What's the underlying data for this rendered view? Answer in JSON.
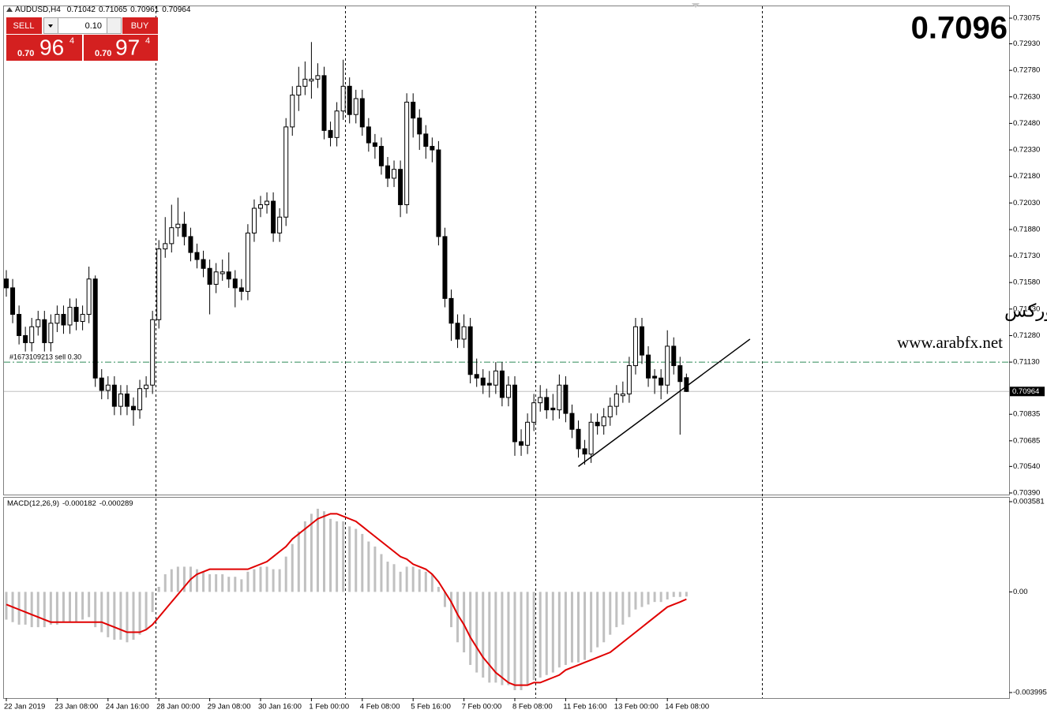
{
  "chart_data": [
    {
      "type": "candlestick",
      "title": "AUDUSD,H4",
      "categories": [
        "22 Jan 2019",
        null,
        null,
        null,
        null,
        null,
        null,
        null,
        "23 Jan 08:00",
        null,
        null,
        null,
        null,
        null,
        null,
        null,
        "24 Jan 16:00",
        null,
        null,
        null,
        null,
        null,
        null,
        null,
        "28 Jan 00:00",
        null,
        null,
        null,
        null,
        null,
        null,
        null,
        "29 Jan 08:00",
        null,
        null,
        null,
        null,
        null,
        null,
        null,
        "30 Jan 16:00",
        null,
        null,
        null,
        null,
        null,
        null,
        null,
        "1 Feb 00:00",
        null,
        null,
        null,
        null,
        null,
        null,
        null,
        "4 Feb 08:00",
        null,
        null,
        null,
        null,
        null,
        null,
        null,
        "5 Feb 16:00",
        null,
        null,
        null,
        null,
        null,
        null,
        null,
        "7 Feb 00:00",
        null,
        null,
        null,
        null,
        null,
        null,
        null,
        "8 Feb 08:00",
        null,
        null,
        null,
        null,
        null,
        null,
        null,
        "11 Feb 16:00",
        null,
        null,
        null,
        null,
        null,
        null,
        null,
        "13 Feb 00:00",
        null,
        null,
        null,
        null,
        null,
        null,
        null,
        "14 Feb 08:00",
        null,
        null,
        null
      ],
      "open": [
        0.716,
        0.7155,
        0.714,
        0.7128,
        0.7124,
        0.7133,
        0.7137,
        0.7124,
        0.7135,
        0.714,
        0.7134,
        0.7144,
        0.7136,
        0.714,
        0.716,
        0.7104,
        0.7097,
        0.71,
        0.7088,
        0.7095,
        0.7088,
        0.7086,
        0.7098,
        0.71,
        0.7137,
        0.7177,
        0.718,
        0.7189,
        0.7191,
        0.7184,
        0.7175,
        0.7171,
        0.7166,
        0.7157,
        0.7163,
        0.7164,
        0.716,
        0.7155,
        0.7153,
        0.7186,
        0.72,
        0.7202,
        0.7204,
        0.7186,
        0.7195,
        0.7246,
        0.7264,
        0.7269,
        0.7272,
        0.7273,
        0.7275,
        0.7244,
        0.724,
        0.7255,
        0.7269,
        0.7253,
        0.7262,
        0.7246,
        0.7237,
        0.7235,
        0.7224,
        0.7217,
        0.7222,
        0.7202,
        0.726,
        0.7251,
        0.7242,
        0.7235,
        0.7233,
        0.7184,
        0.7149,
        0.7135,
        0.7126,
        0.7133,
        0.7106,
        0.7104,
        0.7101,
        0.71,
        0.7108,
        0.7093,
        0.71,
        0.7068,
        0.7066,
        0.7079,
        0.709,
        0.7093,
        0.7087,
        0.7086,
        0.71,
        0.7084,
        0.7075,
        0.7064,
        0.7061,
        0.7079,
        0.7077,
        0.7082,
        0.7088,
        0.7094,
        0.7095,
        0.7111,
        0.7133,
        0.7117,
        0.7105,
        0.7104,
        0.71,
        0.7122,
        0.7111,
        0.71042
      ],
      "high": [
        0.7165,
        0.716,
        0.7145,
        0.7133,
        0.7138,
        0.7142,
        0.7142,
        0.714,
        0.7145,
        0.7145,
        0.7149,
        0.7149,
        0.7145,
        0.7167,
        0.7162,
        0.7109,
        0.7105,
        0.7105,
        0.71,
        0.71,
        0.7093,
        0.7103,
        0.7105,
        0.7142,
        0.7182,
        0.7195,
        0.7202,
        0.7206,
        0.7198,
        0.7189,
        0.718,
        0.7176,
        0.7171,
        0.7169,
        0.7171,
        0.7175,
        0.7165,
        0.716,
        0.7191,
        0.7205,
        0.7207,
        0.7209,
        0.7209,
        0.72,
        0.7251,
        0.7269,
        0.728,
        0.7283,
        0.7294,
        0.7282,
        0.728,
        0.7249,
        0.726,
        0.7284,
        0.7274,
        0.7267,
        0.7267,
        0.7251,
        0.7242,
        0.724,
        0.7229,
        0.7227,
        0.7227,
        0.7265,
        0.7265,
        0.7256,
        0.7247,
        0.724,
        0.7238,
        0.7189,
        0.7154,
        0.714,
        0.714,
        0.7138,
        0.7115,
        0.7109,
        0.7108,
        0.7113,
        0.7113,
        0.7105,
        0.7105,
        0.7075,
        0.7084,
        0.7095,
        0.71,
        0.7098,
        0.7095,
        0.7106,
        0.7105,
        0.7089,
        0.708,
        0.7069,
        0.7084,
        0.7084,
        0.7087,
        0.7093,
        0.71,
        0.7102,
        0.7116,
        0.7138,
        0.7138,
        0.7122,
        0.7109,
        0.7109,
        0.7131,
        0.7127,
        0.7116,
        0.71065
      ],
      "low": [
        0.715,
        0.7135,
        0.7123,
        0.7119,
        0.7119,
        0.7128,
        0.7119,
        0.7119,
        0.713,
        0.7129,
        0.7129,
        0.7131,
        0.7131,
        0.7135,
        0.7099,
        0.7092,
        0.7092,
        0.7083,
        0.7083,
        0.7083,
        0.7077,
        0.7081,
        0.7093,
        0.7095,
        0.7132,
        0.7172,
        0.7175,
        0.7184,
        0.7179,
        0.717,
        0.7166,
        0.7161,
        0.714,
        0.7152,
        0.7159,
        0.7155,
        0.7144,
        0.7148,
        0.7148,
        0.7181,
        0.7195,
        0.7197,
        0.7181,
        0.7181,
        0.719,
        0.7241,
        0.7255,
        0.7264,
        0.7262,
        0.7268,
        0.7239,
        0.7235,
        0.7235,
        0.725,
        0.7248,
        0.7248,
        0.7241,
        0.7232,
        0.7228,
        0.7219,
        0.7212,
        0.7212,
        0.7195,
        0.7197,
        0.724,
        0.7233,
        0.7228,
        0.7226,
        0.7179,
        0.7144,
        0.7125,
        0.7121,
        0.7121,
        0.7101,
        0.7099,
        0.7095,
        0.7093,
        0.7095,
        0.7088,
        0.7088,
        0.706,
        0.706,
        0.7061,
        0.7074,
        0.7085,
        0.7081,
        0.708,
        0.7081,
        0.7079,
        0.707,
        0.7059,
        0.7055,
        0.7056,
        0.7072,
        0.7072,
        0.7077,
        0.7083,
        0.709,
        0.709,
        0.7106,
        0.7112,
        0.7099,
        0.7095,
        0.7092,
        0.7095,
        0.7106,
        0.7072,
        0.70961
      ],
      "close": [
        0.7155,
        0.714,
        0.7128,
        0.7124,
        0.7133,
        0.7137,
        0.7124,
        0.7135,
        0.714,
        0.7134,
        0.7144,
        0.7136,
        0.714,
        0.716,
        0.7104,
        0.7097,
        0.71,
        0.7088,
        0.7095,
        0.7088,
        0.7086,
        0.7098,
        0.71,
        0.7137,
        0.7177,
        0.718,
        0.7189,
        0.7191,
        0.7184,
        0.7175,
        0.7171,
        0.7166,
        0.7157,
        0.7164,
        0.7164,
        0.716,
        0.7155,
        0.7153,
        0.7186,
        0.72,
        0.7202,
        0.7204,
        0.7186,
        0.7195,
        0.7246,
        0.7264,
        0.7269,
        0.7273,
        0.7273,
        0.7275,
        0.7244,
        0.724,
        0.7255,
        0.7269,
        0.7253,
        0.7262,
        0.7246,
        0.7237,
        0.7235,
        0.7224,
        0.7217,
        0.7222,
        0.7202,
        0.726,
        0.7251,
        0.7242,
        0.7235,
        0.7233,
        0.7184,
        0.7149,
        0.7135,
        0.7126,
        0.7133,
        0.7106,
        0.7104,
        0.71,
        0.71,
        0.7108,
        0.7093,
        0.71,
        0.7068,
        0.7066,
        0.7079,
        0.709,
        0.7093,
        0.7086,
        0.7086,
        0.71,
        0.7084,
        0.7075,
        0.7064,
        0.7061,
        0.7079,
        0.7077,
        0.7082,
        0.7088,
        0.7095,
        0.7095,
        0.7111,
        0.7133,
        0.7117,
        0.7104,
        0.7104,
        0.71,
        0.7122,
        0.7111,
        0.7102,
        0.70964
      ],
      "bull_color": "#ffffff",
      "bear_color": "#000000",
      "wick_color": "#000000",
      "ylim": [
        0.70381,
        0.73142
      ],
      "yticks": [
        0.73075,
        {
          "value": 0.7293,
          "label": "0.72930"
        },
        {
          "value": 0.7278,
          "label": "0.72780"
        },
        {
          "value": 0.7263,
          "label": "0.72630"
        },
        {
          "value": 0.7248,
          "label": "0.72480"
        },
        {
          "value": 0.7233,
          "label": "0.72330"
        },
        {
          "value": 0.7218,
          "label": "0.72180"
        },
        {
          "value": 0.7203,
          "label": "0.72030"
        },
        {
          "value": 0.7188,
          "label": "0.71880"
        },
        {
          "value": 0.7173,
          "label": "0.71730"
        },
        {
          "value": 0.7158,
          "label": "0.71580"
        },
        {
          "value": 0.7143,
          "label": "0.71430"
        },
        {
          "value": 0.7128,
          "label": "0.71280"
        },
        {
          "value": 0.7113,
          "label": "0.71130"
        },
        0.70835,
        0.70685,
        {
          "value": 0.7054,
          "label": "0.70540"
        },
        {
          "value": 0.7039,
          "label": "0.70390"
        }
      ],
      "grid": false,
      "order_line": {
        "price": 0.7113,
        "label": "#1673109213 sell 0.30",
        "color": "#2e8b57"
      },
      "trendline": {
        "x": [
          90,
          117
        ],
        "y": [
          0.7054,
          0.7126
        ],
        "color": "#000000"
      },
      "price_display": "0.7096",
      "price_display_color": "#ff00ff"
    },
    {
      "type": "macd",
      "title": "MACD(12,26,9)",
      "series": [
        {
          "color": "#c0c0c0",
          "values": [
            -0.0011,
            -0.0012,
            -0.0013,
            -0.0013,
            -0.0014,
            -0.0014,
            -0.0014,
            -0.0013,
            -0.0013,
            -0.0012,
            -0.0012,
            -0.0012,
            -0.0011,
            -0.001,
            -0.0014,
            -0.0016,
            -0.0018,
            -0.0019,
            -0.0019,
            -0.002,
            -0.0019,
            -0.0017,
            -0.0015,
            -0.0008,
            0.0002,
            0.0007,
            0.0009,
            0.001,
            0.001,
            0.001,
            0.0009,
            0.0008,
            0.0007,
            0.0007,
            0.0007,
            0.0006,
            0.0006,
            0.0005,
            0.0008,
            0.0009,
            0.001,
            0.001,
            0.0009,
            0.0009,
            0.0014,
            0.0019,
            0.0024,
            0.0028,
            0.0031,
            0.0033,
            0.0032,
            0.0029,
            0.0028,
            0.0028,
            0.0026,
            0.0025,
            0.0023,
            0.002,
            0.0018,
            0.0015,
            0.0012,
            0.0011,
            0.0008,
            0.001,
            0.001,
            0.0009,
            0.0008,
            0.0007,
            0.0002,
            -0.0006,
            -0.0014,
            -0.002,
            -0.0024,
            -0.0029,
            -0.0032,
            -0.0034,
            -0.0036,
            -0.0036,
            -0.0037,
            -0.0037,
            -0.0039,
            -0.0039,
            -0.0037,
            -0.0035,
            -0.0034,
            -0.0033,
            -0.0032,
            -0.003,
            -0.0029,
            -0.0028,
            -0.0028,
            -0.0027,
            -0.0024,
            -0.0022,
            -0.002,
            -0.0017,
            -0.0014,
            -0.0013,
            -0.001,
            -0.0007,
            -0.0006,
            -0.0005,
            -0.0004,
            -0.0004,
            -0.0003,
            -0.0002,
            -0.0002,
            -0.000182
          ]
        },
        {
          "color": "#e00000",
          "values": [
            -0.0005,
            -0.0006,
            -0.0007,
            -0.0008,
            -0.0009,
            -0.001,
            -0.0011,
            -0.0012,
            -0.0012,
            -0.0012,
            -0.0012,
            -0.0012,
            -0.0012,
            -0.0012,
            -0.0012,
            -0.0012,
            -0.0013,
            -0.0014,
            -0.0015,
            -0.0016,
            -0.0016,
            -0.0016,
            -0.0015,
            -0.0013,
            -0.001,
            -0.0007,
            -0.0004,
            -0.0001,
            0.0002,
            0.0005,
            0.0007,
            0.0008,
            0.0009,
            0.0009,
            0.0009,
            0.0009,
            0.0009,
            0.0009,
            0.0009,
            0.001,
            0.0011,
            0.0012,
            0.0014,
            0.0016,
            0.0018,
            0.0021,
            0.0023,
            0.0025,
            0.0027,
            0.0029,
            0.003,
            0.0031,
            0.0031,
            0.003,
            0.0029,
            0.0028,
            0.0026,
            0.0024,
            0.0022,
            0.002,
            0.0018,
            0.0016,
            0.0014,
            0.0013,
            0.0011,
            0.001,
            0.0009,
            0.0007,
            0.0004,
            0.0,
            -0.0004,
            -0.0009,
            -0.0013,
            -0.0018,
            -0.0022,
            -0.0026,
            -0.0029,
            -0.0032,
            -0.0034,
            -0.0036,
            -0.0037,
            -0.0037,
            -0.0037,
            -0.0036,
            -0.0036,
            -0.0035,
            -0.0034,
            -0.0033,
            -0.0031,
            -0.003,
            -0.0029,
            -0.0028,
            -0.0027,
            -0.0026,
            -0.0025,
            -0.0024,
            -0.0022,
            -0.002,
            -0.0018,
            -0.0016,
            -0.0014,
            -0.0012,
            -0.001,
            -0.0008,
            -0.0006,
            -0.0005,
            -0.0004,
            -0.000289
          ]
        }
      ],
      "ylim": [
        -0.003995,
        0.003581
      ],
      "yticks": [
        -0.003995,
        {
          "value": 0,
          "label": "0.00"
        },
        0.003581
      ]
    }
  ],
  "trade_panel": {
    "sell": "SELL",
    "buy": "BUY",
    "lot": "0.10",
    "sell_prefix": "0.70",
    "sell_big": "96",
    "sell_pip": "4",
    "buy_prefix": "0.70",
    "buy_big": "97",
    "buy_pip": "4"
  },
  "watermark": {
    "name": "منتديات عرب فوركس",
    "url": "www.arabfx.net"
  }
}
